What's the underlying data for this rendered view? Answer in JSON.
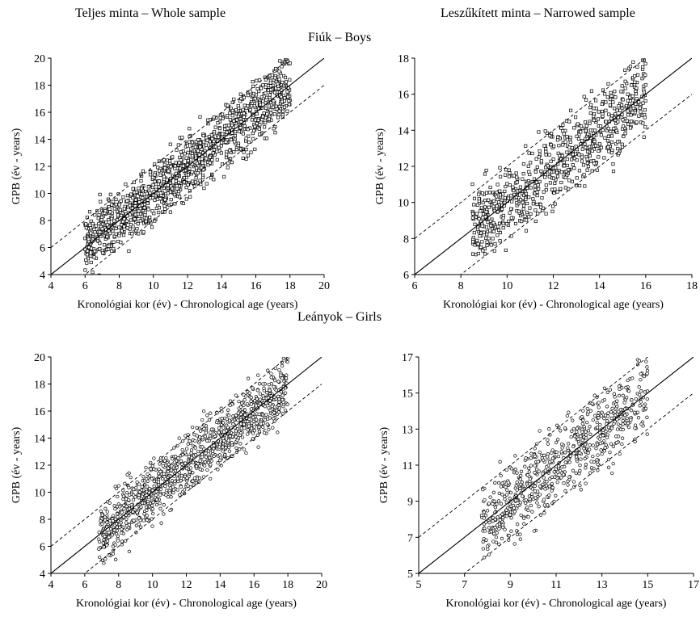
{
  "titles": {
    "left": "Teljes minta – Whole sample",
    "right": "Leszűkített minta – Narrowed sample",
    "boys": "Fiúk – Boys",
    "girls": "Leányok – Girls"
  },
  "chart_data": [
    {
      "id": "boys_whole",
      "type": "scatter",
      "marker": "square",
      "xlabel": "Kronológiai kor (év) - Chronological age (years)",
      "ylabel": "GPB (év - years)",
      "xlim": [
        4,
        20
      ],
      "ylim": [
        4,
        20
      ],
      "xticks": [
        4,
        6,
        8,
        10,
        12,
        14,
        16,
        18,
        20
      ],
      "yticks": [
        4,
        6,
        8,
        10,
        12,
        14,
        16,
        18,
        20
      ],
      "x_range": [
        6.0,
        18.0
      ],
      "y_band": 2.0,
      "points_est": {
        "count": 1200,
        "seed": 11
      },
      "reference_lines": [
        {
          "style": "solid",
          "intercept": 0,
          "slope": 1
        },
        {
          "style": "dashed",
          "intercept": 2,
          "slope": 1
        },
        {
          "style": "dashed",
          "intercept": -2,
          "slope": 1
        }
      ],
      "grid": false
    },
    {
      "id": "boys_narrowed",
      "type": "scatter",
      "marker": "square",
      "xlabel": "Kronológiai kor (év) - Chronological age (years)",
      "ylabel": "GPB (év - years)",
      "xlim": [
        6,
        18
      ],
      "ylim": [
        6,
        18
      ],
      "xticks": [
        6,
        8,
        10,
        12,
        14,
        16,
        18
      ],
      "yticks": [
        6,
        8,
        10,
        12,
        14,
        16,
        18
      ],
      "x_range": [
        8.5,
        16.0
      ],
      "y_band": 2.0,
      "points_est": {
        "count": 750,
        "seed": 23
      },
      "reference_lines": [
        {
          "style": "solid",
          "intercept": 0,
          "slope": 1
        },
        {
          "style": "dashed",
          "intercept": 2,
          "slope": 1
        },
        {
          "style": "dashed",
          "intercept": -2,
          "slope": 1
        }
      ],
      "grid": false
    },
    {
      "id": "girls_whole",
      "type": "scatter",
      "marker": "circle",
      "xlabel": "Kronológiai kor (év) - Chronological age (years)",
      "ylabel": "GPB (év - years)",
      "xlim": [
        4,
        20
      ],
      "ylim": [
        4,
        20
      ],
      "xticks": [
        4,
        6,
        8,
        10,
        12,
        14,
        16,
        18,
        20
      ],
      "yticks": [
        4,
        6,
        8,
        10,
        12,
        14,
        16,
        18,
        20
      ],
      "x_range": [
        6.8,
        18.0
      ],
      "y_band": 2.0,
      "points_est": {
        "count": 1100,
        "seed": 37
      },
      "reference_lines": [
        {
          "style": "solid",
          "intercept": 0,
          "slope": 1
        },
        {
          "style": "dashed",
          "intercept": 2,
          "slope": 1
        },
        {
          "style": "dashed",
          "intercept": -2,
          "slope": 1
        }
      ],
      "grid": false
    },
    {
      "id": "girls_narrowed",
      "type": "scatter",
      "marker": "circle",
      "xlabel": "Kronológiai kor (év) - Chronological age (years)",
      "ylabel": "GPB (év - years)",
      "xlim": [
        5,
        17
      ],
      "ylim": [
        5,
        17
      ],
      "xticks": [
        5,
        7,
        9,
        11,
        13,
        15,
        17
      ],
      "yticks": [
        5,
        7,
        9,
        11,
        13,
        15,
        17
      ],
      "x_range": [
        7.7,
        15.0
      ],
      "y_band": 2.0,
      "points_est": {
        "count": 700,
        "seed": 53
      },
      "reference_lines": [
        {
          "style": "solid",
          "intercept": 0,
          "slope": 1
        },
        {
          "style": "dashed",
          "intercept": 2,
          "slope": 1
        },
        {
          "style": "dashed",
          "intercept": -2,
          "slope": 1
        }
      ],
      "grid": false
    }
  ]
}
